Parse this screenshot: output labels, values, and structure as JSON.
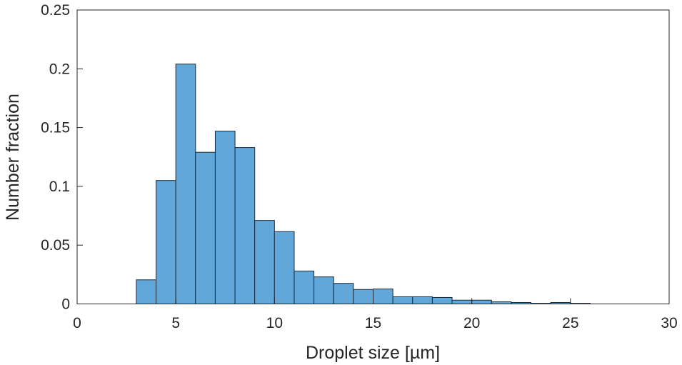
{
  "chart_data": {
    "type": "bar",
    "title": "",
    "xlabel": "Droplet size [µm]",
    "ylabel": "Number fraction",
    "xlim": [
      0,
      30
    ],
    "ylim": [
      0,
      0.25
    ],
    "xticks": [
      "0",
      "5",
      "10",
      "15",
      "20",
      "25",
      "30"
    ],
    "yticks": [
      "0",
      "0.05",
      "0.1",
      "0.15",
      "0.2",
      "0.25"
    ],
    "grid": false,
    "bin_edges": [
      3,
      4,
      5,
      6,
      7,
      8,
      9,
      10,
      11,
      12,
      13,
      14,
      15,
      16,
      17,
      18,
      19,
      20,
      21,
      22,
      23,
      24,
      25,
      26
    ],
    "values": [
      0.0205,
      0.105,
      0.204,
      0.129,
      0.147,
      0.133,
      0.071,
      0.0615,
      0.028,
      0.023,
      0.0175,
      0.0123,
      0.0127,
      0.0061,
      0.0061,
      0.0055,
      0.0032,
      0.0032,
      0.0018,
      0.0012,
      0.0005,
      0.0012,
      0.0005
    ],
    "bar_color": "#62a7d9",
    "edge_color": "#1a2a3a"
  }
}
